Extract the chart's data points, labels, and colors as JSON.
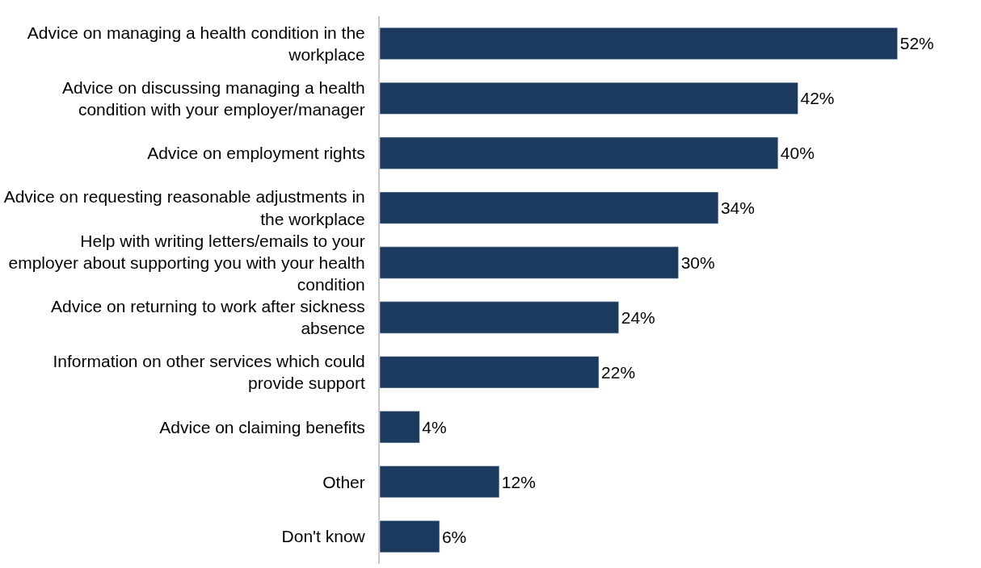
{
  "chart_data": {
    "type": "bar",
    "orientation": "horizontal",
    "categories": [
      "Advice on managing a health condition in the workplace",
      "Advice on discussing managing a health condition with your employer/manager",
      "Advice on employment rights",
      "Advice on requesting reasonable adjustments in the workplace",
      "Help with writing letters/emails to your employer about supporting you with your health condition",
      "Advice on returning to work after sickness absence",
      "Information on other services which could provide support",
      "Advice on claiming benefits",
      "Other",
      "Don't know"
    ],
    "values": [
      52,
      42,
      40,
      34,
      30,
      24,
      22,
      4,
      12,
      6
    ],
    "value_labels": [
      "52%",
      "42%",
      "40%",
      "34%",
      "30%",
      "24%",
      "22%",
      "4%",
      "12%",
      "6%"
    ],
    "color": "#1b3a5e"
  }
}
